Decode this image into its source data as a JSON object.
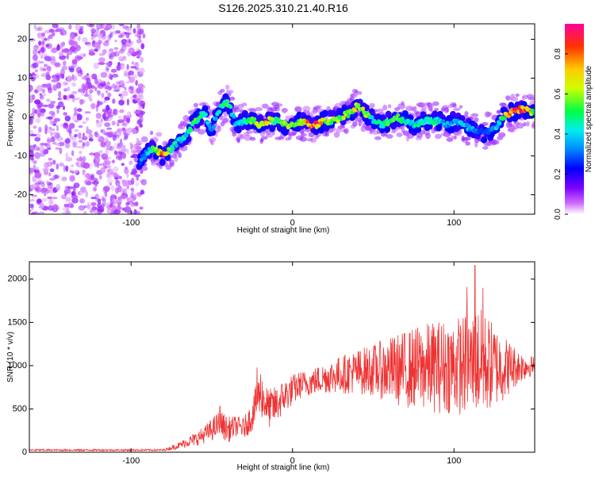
{
  "chart_data": [
    {
      "type": "heatmap",
      "title": "S126.2025.310.21.40.R16",
      "xlabel": "Height of straight line (km)",
      "ylabel": "Frequency (Hz)",
      "xlim": [
        -163,
        150
      ],
      "ylim": [
        -25,
        24
      ],
      "xticks": [
        -100,
        0,
        100
      ],
      "xtick_labels": [
        "-100",
        "0",
        "100"
      ],
      "yticks": [
        20,
        10,
        0,
        -10,
        -20
      ],
      "ytick_labels": [
        "20",
        "10",
        "0",
        "-10",
        "-20"
      ],
      "colorbar": {
        "label": "Normalized spectral amplitude",
        "range": [
          0.0,
          0.95
        ],
        "ticks": [
          0.0,
          0.2,
          0.4,
          0.6,
          0.8
        ],
        "tick_labels": [
          "0.0",
          "0.2",
          "0.4",
          "0.6",
          "0.8"
        ],
        "colormap": [
          "#ffffff",
          "#cc66ff",
          "#7a00ff",
          "#0000ff",
          "#0088ff",
          "#00eeee",
          "#00ff44",
          "#ccff00",
          "#ffcc00",
          "#ff3300",
          "#ff0099"
        ]
      },
      "noise_region": {
        "x_range": [
          -163,
          -92
        ],
        "y_range": [
          -25,
          24
        ],
        "amplitude": 0.1
      },
      "ridge": {
        "x": [
          -95,
          -90,
          -85,
          -80,
          -75,
          -70,
          -65,
          -60,
          -55,
          -50,
          -45,
          -40,
          -35,
          -30,
          -25,
          -20,
          -15,
          -10,
          -5,
          0,
          5,
          10,
          15,
          20,
          25,
          30,
          35,
          40,
          45,
          50,
          55,
          60,
          65,
          70,
          75,
          80,
          85,
          90,
          95,
          100,
          105,
          110,
          115,
          120,
          125,
          130,
          135,
          140,
          145,
          150
        ],
        "y": [
          -12,
          -9,
          -8,
          -10,
          -8,
          -6,
          -4,
          -1,
          1,
          -3,
          2,
          4,
          -2,
          -1,
          -1,
          -2,
          -1,
          -1,
          -2,
          -2,
          -1,
          -2,
          -2,
          -1,
          -1,
          0,
          1,
          3,
          1,
          -1,
          -2,
          -1,
          0,
          -1,
          -2,
          -1,
          -1,
          -1,
          -2,
          -1,
          -2,
          -3,
          -4,
          -4,
          -3,
          0,
          1,
          2,
          2,
          1
        ],
        "amplitude": [
          0.3,
          0.45,
          0.6,
          0.9,
          0.55,
          0.4,
          0.5,
          0.6,
          0.5,
          0.35,
          0.5,
          0.55,
          0.4,
          0.45,
          0.6,
          0.7,
          0.75,
          0.55,
          0.6,
          0.65,
          0.6,
          0.85,
          0.9,
          0.7,
          0.65,
          0.6,
          0.65,
          0.7,
          0.65,
          0.45,
          0.5,
          0.55,
          0.55,
          0.5,
          0.45,
          0.5,
          0.55,
          0.5,
          0.4,
          0.35,
          0.45,
          0.4,
          0.35,
          0.3,
          0.35,
          0.6,
          0.85,
          0.9,
          0.85,
          0.6
        ]
      }
    },
    {
      "type": "line",
      "xlabel": "Height of straight line (km)",
      "ylabel": "SNR (10 * v/v)",
      "xlim": [
        -163,
        150
      ],
      "ylim": [
        0,
        2200
      ],
      "xticks": [
        -100,
        0,
        100
      ],
      "xtick_labels": [
        "-100",
        "0",
        "100"
      ],
      "yticks": [
        0,
        500,
        1000,
        1500,
        2000
      ],
      "ytick_labels": [
        "0",
        "500",
        "1000",
        "1500",
        "2000"
      ],
      "color": "#ee3333",
      "series": [
        {
          "name": "SNR",
          "x": [
            -163,
            -140,
            -120,
            -100,
            -90,
            -80,
            -75,
            -70,
            -65,
            -60,
            -55,
            -50,
            -45,
            -40,
            -35,
            -30,
            -25,
            -20,
            -15,
            -10,
            -5,
            0,
            5,
            10,
            20,
            30,
            40,
            50,
            60,
            70,
            80,
            90,
            100,
            110,
            115,
            120,
            130,
            140,
            150
          ],
          "y": [
            25,
            25,
            25,
            25,
            25,
            25,
            50,
            80,
            120,
            150,
            200,
            260,
            330,
            260,
            300,
            280,
            420,
            700,
            500,
            550,
            650,
            720,
            780,
            800,
            860,
            900,
            930,
            950,
            950,
            960,
            980,
            990,
            1000,
            1010,
            1050,
            1020,
            980,
            990,
            1000
          ],
          "spread": [
            10,
            10,
            10,
            10,
            10,
            10,
            25,
            40,
            60,
            80,
            100,
            130,
            160,
            150,
            120,
            120,
            180,
            280,
            230,
            220,
            200,
            180,
            160,
            150,
            180,
            220,
            260,
            300,
            380,
            450,
            500,
            540,
            560,
            600,
            650,
            580,
            400,
            200,
            100
          ],
          "peaks": [
            {
              "x": -45,
              "y": 530
            },
            {
              "x": -22,
              "y": 980
            },
            {
              "x": 108,
              "y": 1910
            },
            {
              "x": 113,
              "y": 2160
            },
            {
              "x": 118,
              "y": 1900
            }
          ]
        }
      ]
    }
  ]
}
